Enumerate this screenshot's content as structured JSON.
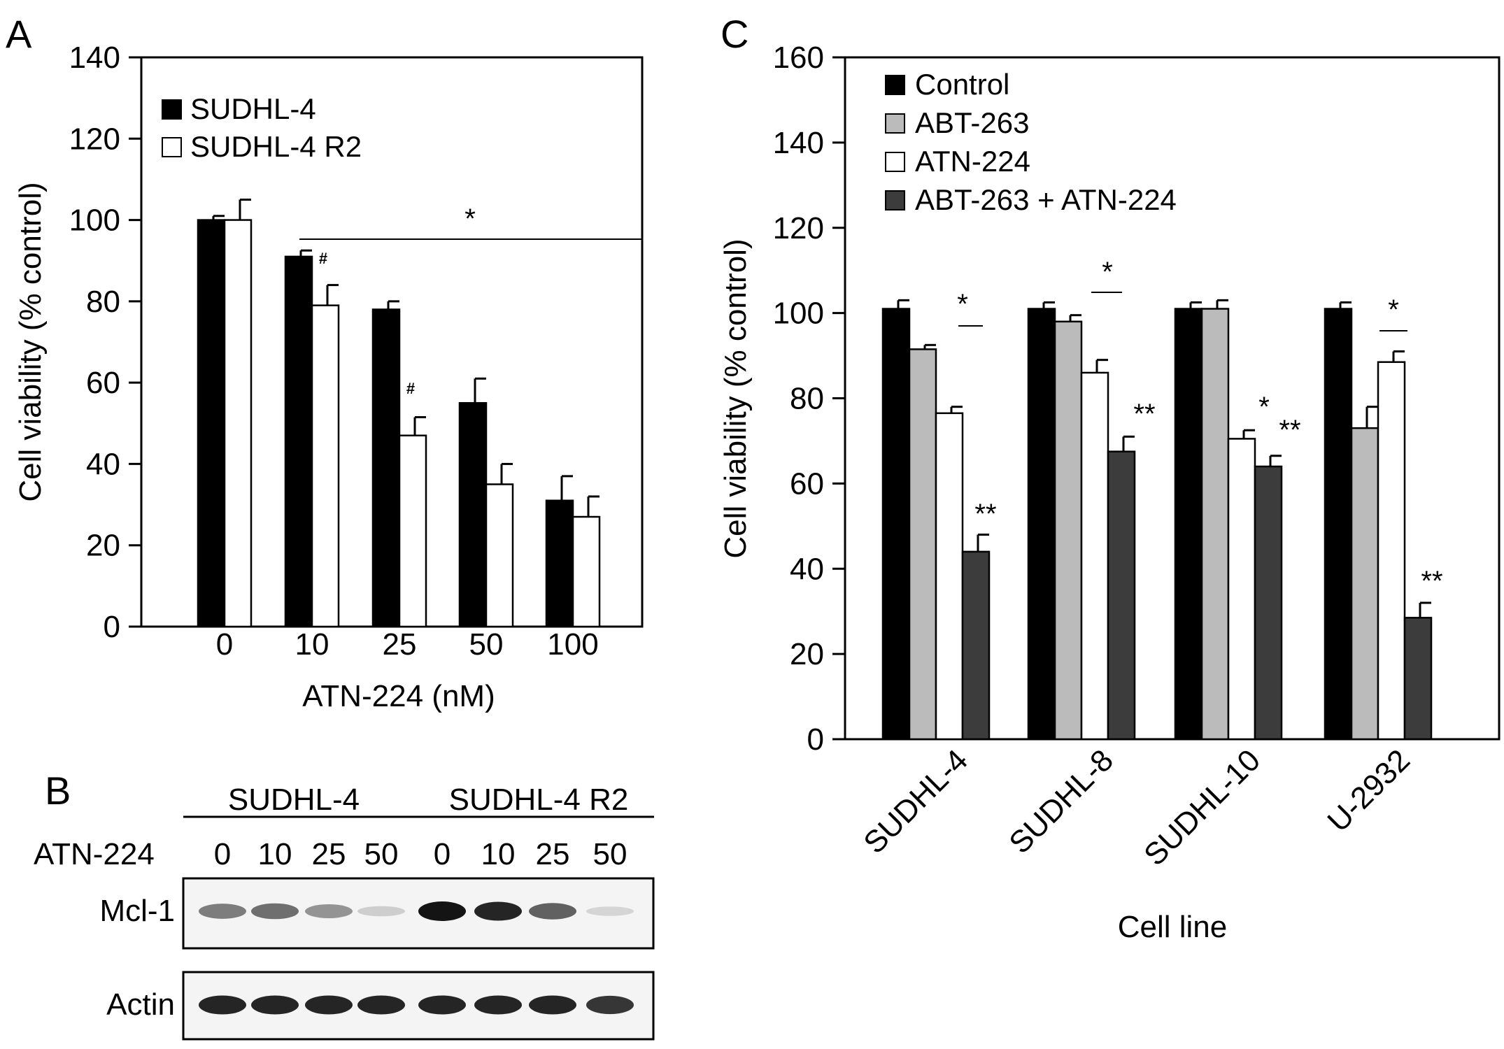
{
  "panels": {
    "A": {
      "letter": "A",
      "chart_data": {
        "type": "bar",
        "xlabel": "ATN-224 (nM)",
        "ylabel": "Cell viability (% control)",
        "ylim": [
          0,
          140
        ],
        "yticks": [
          0,
          20,
          40,
          60,
          80,
          100,
          120,
          140
        ],
        "categories": [
          "0",
          "10",
          "25",
          "50",
          "100"
        ],
        "series": [
          {
            "name": "SUDHL-4",
            "color": "#000000",
            "values": [
              100,
              91,
              78,
              55,
              31
            ],
            "errors": [
              1,
              1.5,
              2,
              6,
              6
            ]
          },
          {
            "name": "SUDHL-4 R2",
            "color": "#ffffff",
            "values": [
              100,
              79,
              47,
              35,
              27
            ],
            "errors": [
              5,
              5,
              4.5,
              5,
              5
            ]
          }
        ],
        "annotations": {
          "significance_star": "*",
          "hash": "#"
        },
        "legend_position": "top-left"
      }
    },
    "B": {
      "letter": "B",
      "group_labels": [
        "SUDHL-4",
        "SUDHL-4 R2"
      ],
      "row_label": "ATN-224",
      "doses": [
        "0",
        "10",
        "25",
        "50",
        "0",
        "10",
        "25",
        "50"
      ],
      "blots": [
        {
          "label": "Mcl-1",
          "intensities": [
            0.65,
            0.7,
            0.55,
            0.25,
            1.0,
            0.95,
            0.75,
            0.2
          ]
        },
        {
          "label": "Actin",
          "intensities": [
            0.95,
            0.95,
            0.95,
            0.95,
            0.95,
            0.95,
            0.95,
            0.9
          ]
        }
      ]
    },
    "C": {
      "letter": "C",
      "chart_data": {
        "type": "bar",
        "xlabel": "Cell line",
        "ylabel": "Cell viability (% control)",
        "ylim": [
          0,
          160
        ],
        "yticks": [
          0,
          20,
          40,
          60,
          80,
          100,
          120,
          140,
          160
        ],
        "categories": [
          "SUDHL-4",
          "SUDHL-8",
          "SUDHL-10",
          "U-2932"
        ],
        "series": [
          {
            "name": "Control",
            "color": "#000000",
            "values": [
              101,
              101,
              101,
              101
            ],
            "errors": [
              2,
              1.5,
              1.5,
              1.5
            ]
          },
          {
            "name": "ABT-263",
            "color": "#bbbbbb",
            "values": [
              91.5,
              98,
              101,
              73
            ],
            "errors": [
              1,
              1.5,
              2,
              5
            ]
          },
          {
            "name": "ATN-224",
            "color": "#ffffff",
            "values": [
              76.5,
              86,
              70.5,
              88.5
            ],
            "errors": [
              1.5,
              3,
              2,
              2.5
            ]
          },
          {
            "name": "ABT-263 + ATN-224",
            "color": "#3c3c3c",
            "values": [
              44,
              67.5,
              64,
              28.5
            ],
            "errors": [
              4,
              3.5,
              2.5,
              3.5
            ]
          }
        ],
        "annotations": {
          "single_star": "*",
          "double_star": "**"
        },
        "legend_position": "top-left"
      }
    }
  }
}
